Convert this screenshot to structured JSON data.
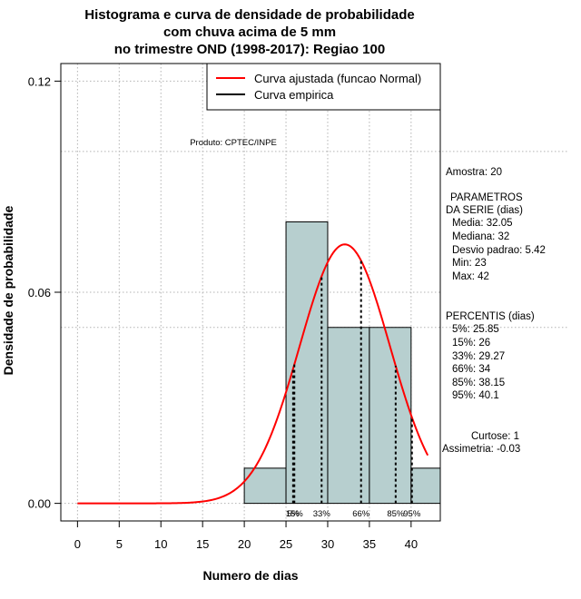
{
  "chart_data": {
    "type": "bar",
    "title_lines": [
      "Histograma e curva de densidade de probabilidade",
      "com chuva acima de 5 mm",
      "no trimestre OND (1998-2017): Regiao 100"
    ],
    "xlabel": "Numero de dias",
    "ylabel": "Densidade de probabilidade",
    "xlim": [
      -2,
      43.5
    ],
    "ylim": [
      -0.005,
      0.125
    ],
    "x_ticks": [
      "0",
      "5",
      "10",
      "15",
      "20",
      "25",
      "30",
      "35",
      "40"
    ],
    "y_ticks": [
      "0.00",
      "0.06",
      "0.12"
    ],
    "histogram": [
      {
        "from": 20,
        "to": 25,
        "density": 0.01
      },
      {
        "from": 25,
        "to": 30,
        "density": 0.08
      },
      {
        "from": 30,
        "to": 35,
        "density": 0.05
      },
      {
        "from": 35,
        "to": 40,
        "density": 0.05
      },
      {
        "from": 40,
        "to": 45,
        "density": 0.01
      }
    ],
    "normal_curve": {
      "mean": 32.05,
      "sd": 5.42,
      "x_from": 0,
      "x_to": 42
    },
    "hlines": [
      0.1,
      0.05
    ],
    "percentile_lines": [
      {
        "label": "5%",
        "x": 25.85
      },
      {
        "label": "15%",
        "x": 26
      },
      {
        "label": "33%",
        "x": 29.27
      },
      {
        "label": "66%",
        "x": 34
      },
      {
        "label": "85%",
        "x": 38.15
      },
      {
        "label": "95%",
        "x": 40.1
      }
    ],
    "legend": {
      "position": "top-right",
      "entries": [
        {
          "label": "Curva ajustada (funcao Normal)",
          "color": "#ff0000"
        },
        {
          "label": "Curva empirica",
          "color": "#000000"
        }
      ]
    },
    "product_label": "Produto: CPTEC/INPE",
    "colors": {
      "bar_fill": "#b7cfcf",
      "curve": "#ff0000"
    }
  },
  "stats": {
    "amostra": "Amostra: 20",
    "params_title_1": "PARAMETROS",
    "params_title_2": "DA SERIE (dias)",
    "media": "Media: 32.05",
    "mediana": "Mediana: 32",
    "desvio": "Desvio padrao: 5.42",
    "min": "Min: 23",
    "max": "Max: 42",
    "percentis_title": "PERCENTIS (dias)",
    "p5": "5%: 25.85",
    "p15": "15%: 26",
    "p33": "33%: 29.27",
    "p66": "66%: 34",
    "p85": "85%: 38.15",
    "p95": "95%: 40.1",
    "curtose": "Curtose: 1",
    "assimetria": "Assimetria: -0.03"
  }
}
